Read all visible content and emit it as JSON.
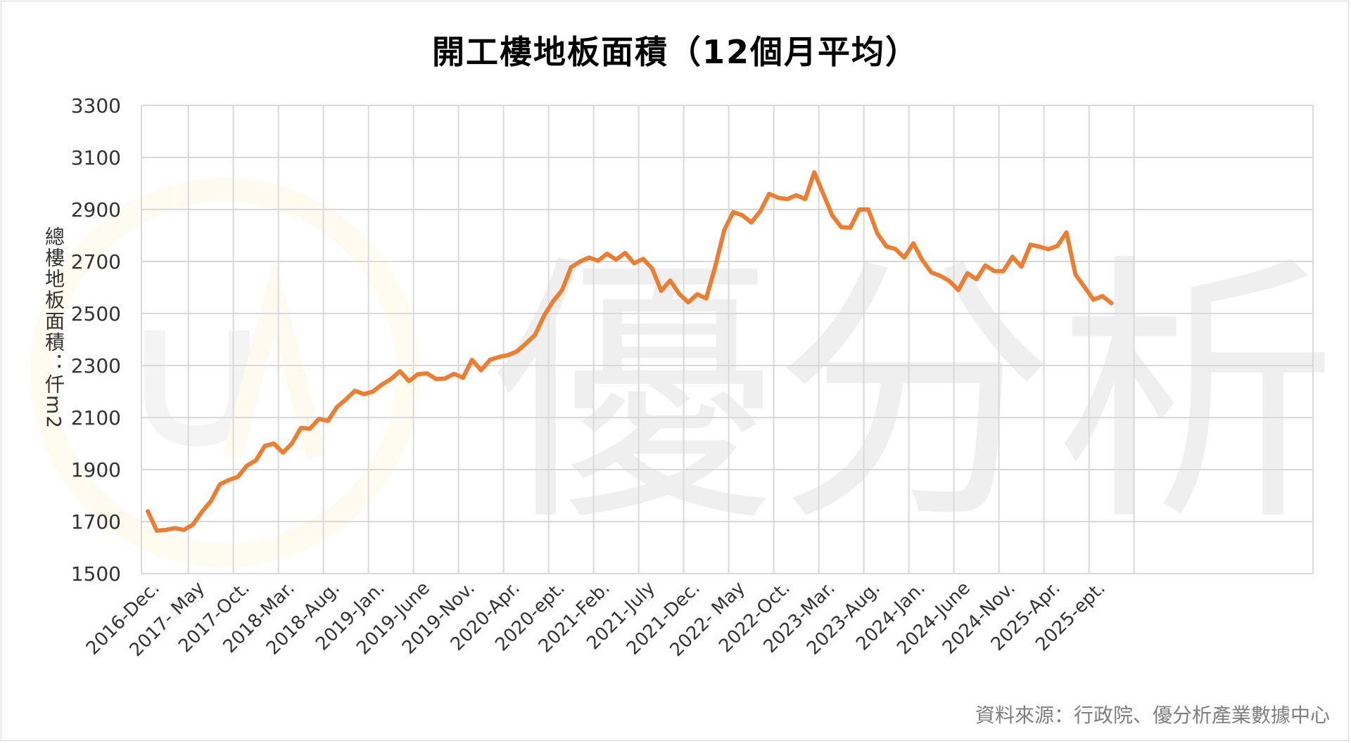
{
  "chart_data": {
    "type": "line",
    "title": "開工樓地板面積（12個月平均）",
    "ylabel": "總樓地板面積：仟m2",
    "xlabel": "",
    "ylim": [
      1500,
      3300
    ],
    "yticks": [
      1500,
      1700,
      1900,
      2100,
      2300,
      2500,
      2700,
      2900,
      3100,
      3300
    ],
    "xtick_labels": [
      "2016-Dec.",
      "2017- May",
      "2017-Oct.",
      "2018-Mar.",
      "2018-Aug.",
      "2019-Jan.",
      "2019-June",
      "2019-Nov.",
      "2020-Apr.",
      "2020-ept.",
      "2021-Feb.",
      "2021-July",
      "2021-Dec.",
      "2022- May",
      "2022-Oct.",
      "2023-Mar.",
      "2023-Aug.",
      "2024-Jan.",
      "2024-June",
      "2024-Nov.",
      "2025-Apr.",
      "2025-ept."
    ],
    "grid": true,
    "line_color": "#ED7D31",
    "series": [
      {
        "name": "",
        "values": [
          1740,
          1665,
          1668,
          1675,
          1668,
          1688,
          1737,
          1778,
          1843,
          1860,
          1872,
          1915,
          1935,
          1991,
          2000,
          1965,
          2000,
          2060,
          2057,
          2095,
          2087,
          2140,
          2170,
          2203,
          2190,
          2200,
          2227,
          2248,
          2278,
          2240,
          2267,
          2270,
          2248,
          2250,
          2268,
          2253,
          2322,
          2282,
          2322,
          2333,
          2340,
          2355,
          2385,
          2418,
          2492,
          2547,
          2590,
          2678,
          2700,
          2715,
          2703,
          2730,
          2707,
          2733,
          2693,
          2710,
          2673,
          2587,
          2627,
          2576,
          2543,
          2574,
          2558,
          2680,
          2820,
          2890,
          2878,
          2850,
          2893,
          2960,
          2945,
          2940,
          2955,
          2940,
          3043,
          2960,
          2877,
          2832,
          2830,
          2900,
          2900,
          2808,
          2758,
          2748,
          2715,
          2770,
          2705,
          2658,
          2645,
          2625,
          2590,
          2655,
          2632,
          2685,
          2663,
          2663,
          2718,
          2680,
          2765,
          2757,
          2747,
          2760,
          2812,
          2650,
          2602,
          2553,
          2567,
          2540
        ]
      }
    ]
  },
  "watermark": {
    "text": "優分析"
  },
  "source_note": "資料來源：行政院、優分析產業數據中心"
}
